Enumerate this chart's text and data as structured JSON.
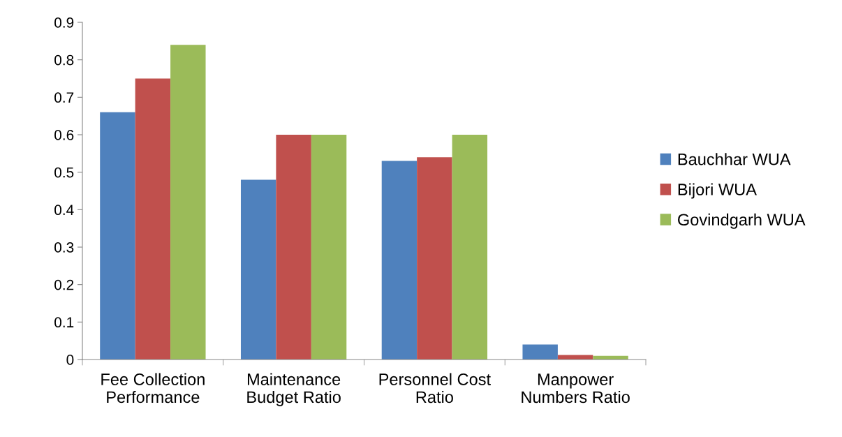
{
  "chart_data": {
    "type": "bar",
    "categories": [
      "Fee Collection\nPerformance",
      "Maintenance\nBudget Ratio",
      "Personnel Cost\nRatio",
      "Manpower\nNumbers Ratio"
    ],
    "series": [
      {
        "name": "Bauchhar WUA",
        "color": "#4f81bd",
        "values": [
          0.66,
          0.48,
          0.53,
          0.04
        ]
      },
      {
        "name": "Bijori WUA",
        "color": "#c0504d",
        "values": [
          0.75,
          0.6,
          0.54,
          0.012
        ]
      },
      {
        "name": "Govindgarh WUA",
        "color": "#9bbb59",
        "values": [
          0.84,
          0.6,
          0.6,
          0.01
        ]
      }
    ],
    "ylim": [
      0,
      0.9
    ],
    "yticks": [
      0,
      0.1,
      0.2,
      0.3,
      0.4,
      0.5,
      0.6,
      0.7,
      0.8,
      0.9
    ],
    "grid": false,
    "legend": "right"
  }
}
